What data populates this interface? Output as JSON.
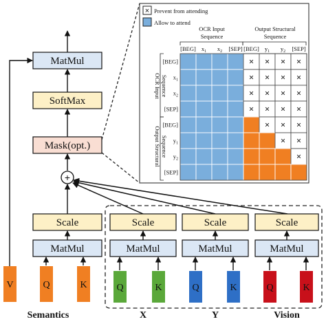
{
  "legend": {
    "prevent_label": "Prevent from attending",
    "allow_label": "Allow to attend"
  },
  "matrix": {
    "col_group_input": [
      "OCR Input",
      "Sequence"
    ],
    "col_group_output": [
      "Output Structural",
      "Sequence"
    ],
    "row_group_input": [
      "OCR Input",
      "Sequence"
    ],
    "row_group_output": [
      "Output Structural",
      "Sequence"
    ],
    "col_labels": [
      "[BEG]",
      "x1",
      "x2",
      "[SEP]",
      "[BEG]",
      "y1",
      "y2",
      "[SEP]"
    ],
    "row_labels": [
      "[BEG]",
      "x1",
      "x2",
      "[SEP]",
      "[BEG]",
      "y1",
      "y2",
      "[SEP]"
    ],
    "cells": [
      [
        "A",
        "A",
        "A",
        "A",
        "P",
        "P",
        "P",
        "P"
      ],
      [
        "A",
        "A",
        "A",
        "A",
        "P",
        "P",
        "P",
        "P"
      ],
      [
        "A",
        "A",
        "A",
        "A",
        "P",
        "P",
        "P",
        "P"
      ],
      [
        "A",
        "A",
        "A",
        "A",
        "P",
        "P",
        "P",
        "P"
      ],
      [
        "A",
        "A",
        "A",
        "A",
        "O",
        "P",
        "P",
        "P"
      ],
      [
        "A",
        "A",
        "A",
        "A",
        "O",
        "O",
        "P",
        "P"
      ],
      [
        "A",
        "A",
        "A",
        "A",
        "O",
        "O",
        "O",
        "P"
      ],
      [
        "A",
        "A",
        "A",
        "A",
        "O",
        "O",
        "O",
        "O"
      ]
    ],
    "prevent_glyph": "×"
  },
  "blocks": {
    "matmul_top": "MatMul",
    "softmax": "SoftMax",
    "mask": "Mask(opt.)",
    "plus": "+",
    "scale": "Scale",
    "matmul": "MatMul"
  },
  "inputs": {
    "v": "V",
    "q": "Q",
    "k": "K"
  },
  "group_labels": {
    "semantics": "Semantics",
    "x": "X",
    "y": "Y",
    "vision": "Vision"
  },
  "colors": {
    "allow": "#7aaedc",
    "output_block": "#f07f22",
    "prevent": "#ffffff",
    "matmul_fill": "#dbe7f5",
    "softmax_fill": "#fdf0c6",
    "mask_fill": "#f9ded3",
    "scale_fill": "#fdf0c6",
    "semantics_orange": "#f07f22",
    "x_green": "#5aa83a",
    "y_blue": "#2e6fc6",
    "vision_red": "#c8101a"
  }
}
